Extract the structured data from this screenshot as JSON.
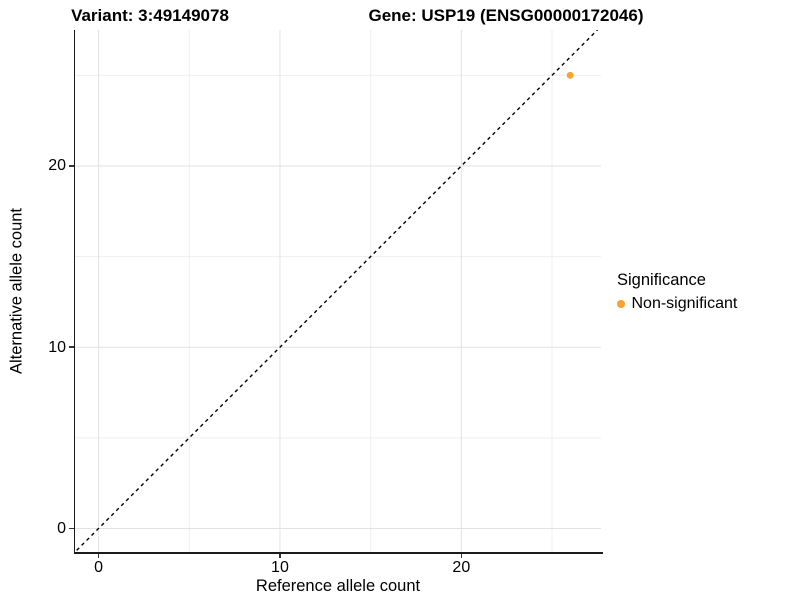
{
  "titles": {
    "variant": "Variant: 3:49149078",
    "gene": "Gene: USP19 (ENSG00000172046)"
  },
  "axes": {
    "x": {
      "label": "Reference allele count"
    },
    "y": {
      "label": "Alternative allele count"
    }
  },
  "legend": {
    "title": "Significance",
    "items": [
      {
        "label": "Non-significant",
        "color": "#F9A331"
      }
    ]
  },
  "chart_data": {
    "type": "scatter",
    "titles": [
      "Variant: 3:49149078",
      "Gene: USP19 (ENSG00000172046)"
    ],
    "xlabel": "Reference allele count",
    "ylabel": "Alternative allele count",
    "xlim": [
      -1.3,
      27.7
    ],
    "ylim": [
      -1.3,
      27.5
    ],
    "x_ticks": [
      0,
      10,
      20
    ],
    "y_ticks": [
      0,
      10,
      20
    ],
    "x_minor_ticks": [
      5,
      15,
      25
    ],
    "y_minor_ticks": [
      5,
      15,
      25
    ],
    "grid": true,
    "grid_major_color": "#e2e2e2",
    "grid_minor_color": "#efefef",
    "axis_color": "#1a1a1a",
    "legend_position": "right",
    "series": [
      {
        "name": "Non-significant",
        "color": "#F9A331",
        "point_radius": 3.5,
        "points": [
          {
            "x": 26,
            "y": 25
          }
        ]
      }
    ],
    "reference_line": {
      "style": "dashed",
      "color": "#000000",
      "slope": 1,
      "intercept": 0
    }
  }
}
